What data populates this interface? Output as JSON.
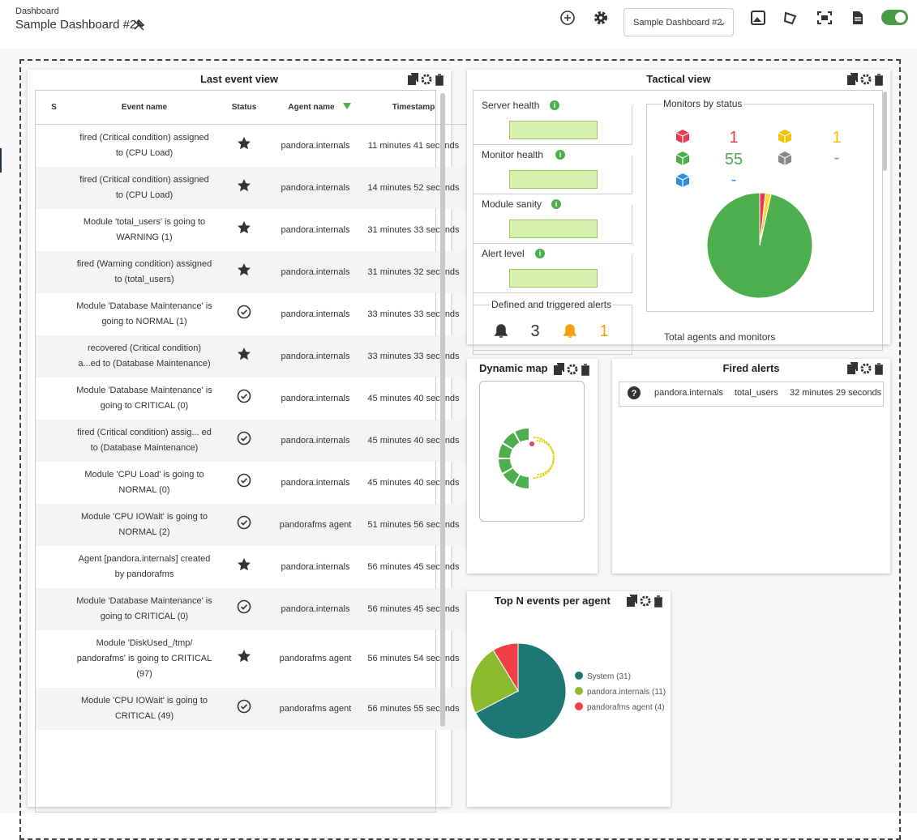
{
  "header": {
    "breadcrumb": "Dashboard",
    "title": "Sample Dashboard #2",
    "selector": "Sample Dashboard #2"
  },
  "last_event_view": {
    "title": "Last event view",
    "columns": [
      "S",
      "Event name",
      "Status",
      "Agent name",
      "Timestamp"
    ],
    "rows": [
      {
        "event": "fired (Critical condition) assigned to (CPU Load)",
        "agent": "pandora.internals",
        "timestamp": "11 minutes 41 seconds"
      },
      {
        "event": "fired (Critical condition) assigned to (CPU Load)",
        "agent": "pandora.internals",
        "timestamp": "14 minutes 52 seconds"
      },
      {
        "event": "Module 'total_users' is going to WARNING (1)",
        "agent": "pandora.internals",
        "timestamp": "31 minutes 33 seconds"
      },
      {
        "event": "fired (Warning condition) assigned to (total_users)",
        "agent": "pandora.internals",
        "timestamp": "31 minutes 32 seconds"
      },
      {
        "event": "Module 'Database Maintenance' is going to NORMAL (1)",
        "agent": "pandora.internals",
        "timestamp": "33 minutes 33 seconds"
      },
      {
        "event": "recovered (Critical condition) a...ed to (Database Maintenance)",
        "agent": "pandora.internals",
        "timestamp": "33 minutes 33 seconds"
      },
      {
        "event": "Module 'Database Maintenance' is going to CRITICAL (0)",
        "agent": "pandora.internals",
        "timestamp": "45 minutes 40 seconds"
      },
      {
        "event": "fired (Critical condition) assig... ed to (Database Maintenance)",
        "agent": "pandora.internals",
        "timestamp": "45 minutes 40 seconds"
      },
      {
        "event": "Module 'CPU Load' is going to NORMAL (0)",
        "agent": "pandora.internals",
        "timestamp": "45 minutes 40 seconds"
      },
      {
        "event": "Module 'CPU IOWait' is going to NORMAL (2)",
        "agent": "pandorafms agent",
        "timestamp": "51 minutes 56 seconds"
      },
      {
        "event": "Agent [pandora.internals] created by pandorafms",
        "agent": "pandora.internals",
        "timestamp": "56 minutes 45 seconds"
      },
      {
        "event": "Module 'Database Maintenance' is going to CRITICAL (0)",
        "agent": "pandora.internals",
        "timestamp": "56 minutes 45 seconds"
      },
      {
        "event": "Module 'DiskUsed_/tmp/ pandorafms' is going to CRITICAL (97)",
        "agent": "pandorafms agent",
        "timestamp": "56 minutes 54 seconds"
      },
      {
        "event": "Module 'CPU IOWait' is going to CRITICAL (49)",
        "agent": "pandorafms agent",
        "timestamp": "56 minutes 55 seconds"
      }
    ]
  },
  "tactical_view": {
    "title": "Tactical view",
    "health": [
      "Server health",
      "Monitor health",
      "Module sanity",
      "Alert level"
    ],
    "alerts": {
      "label": "Defined and triggered alerts",
      "defined": 3,
      "triggered": 1
    },
    "monitors": {
      "label": "Monitors by status",
      "critical": 1,
      "warning": 1,
      "normal": 55,
      "unknown": "-",
      "not_init": "-"
    },
    "total_label": "Total agents and monitors"
  },
  "dynamic_map": {
    "title": "Dynamic map"
  },
  "fired_alerts": {
    "title": "Fired alerts",
    "rows": [
      [
        "pandora.internals",
        "total_users",
        "32 minutes 29 seconds"
      ]
    ]
  },
  "top_n": {
    "title": "Top N events per agent",
    "slices": [
      {
        "label": "System (31)",
        "value": 31,
        "color": "#1d7873"
      },
      {
        "label": "pandora.internals (11)",
        "value": 11,
        "color": "#8cba2e"
      },
      {
        "label": "pandorafms agent (4)",
        "value": 4,
        "color": "#f23e45"
      }
    ]
  }
}
